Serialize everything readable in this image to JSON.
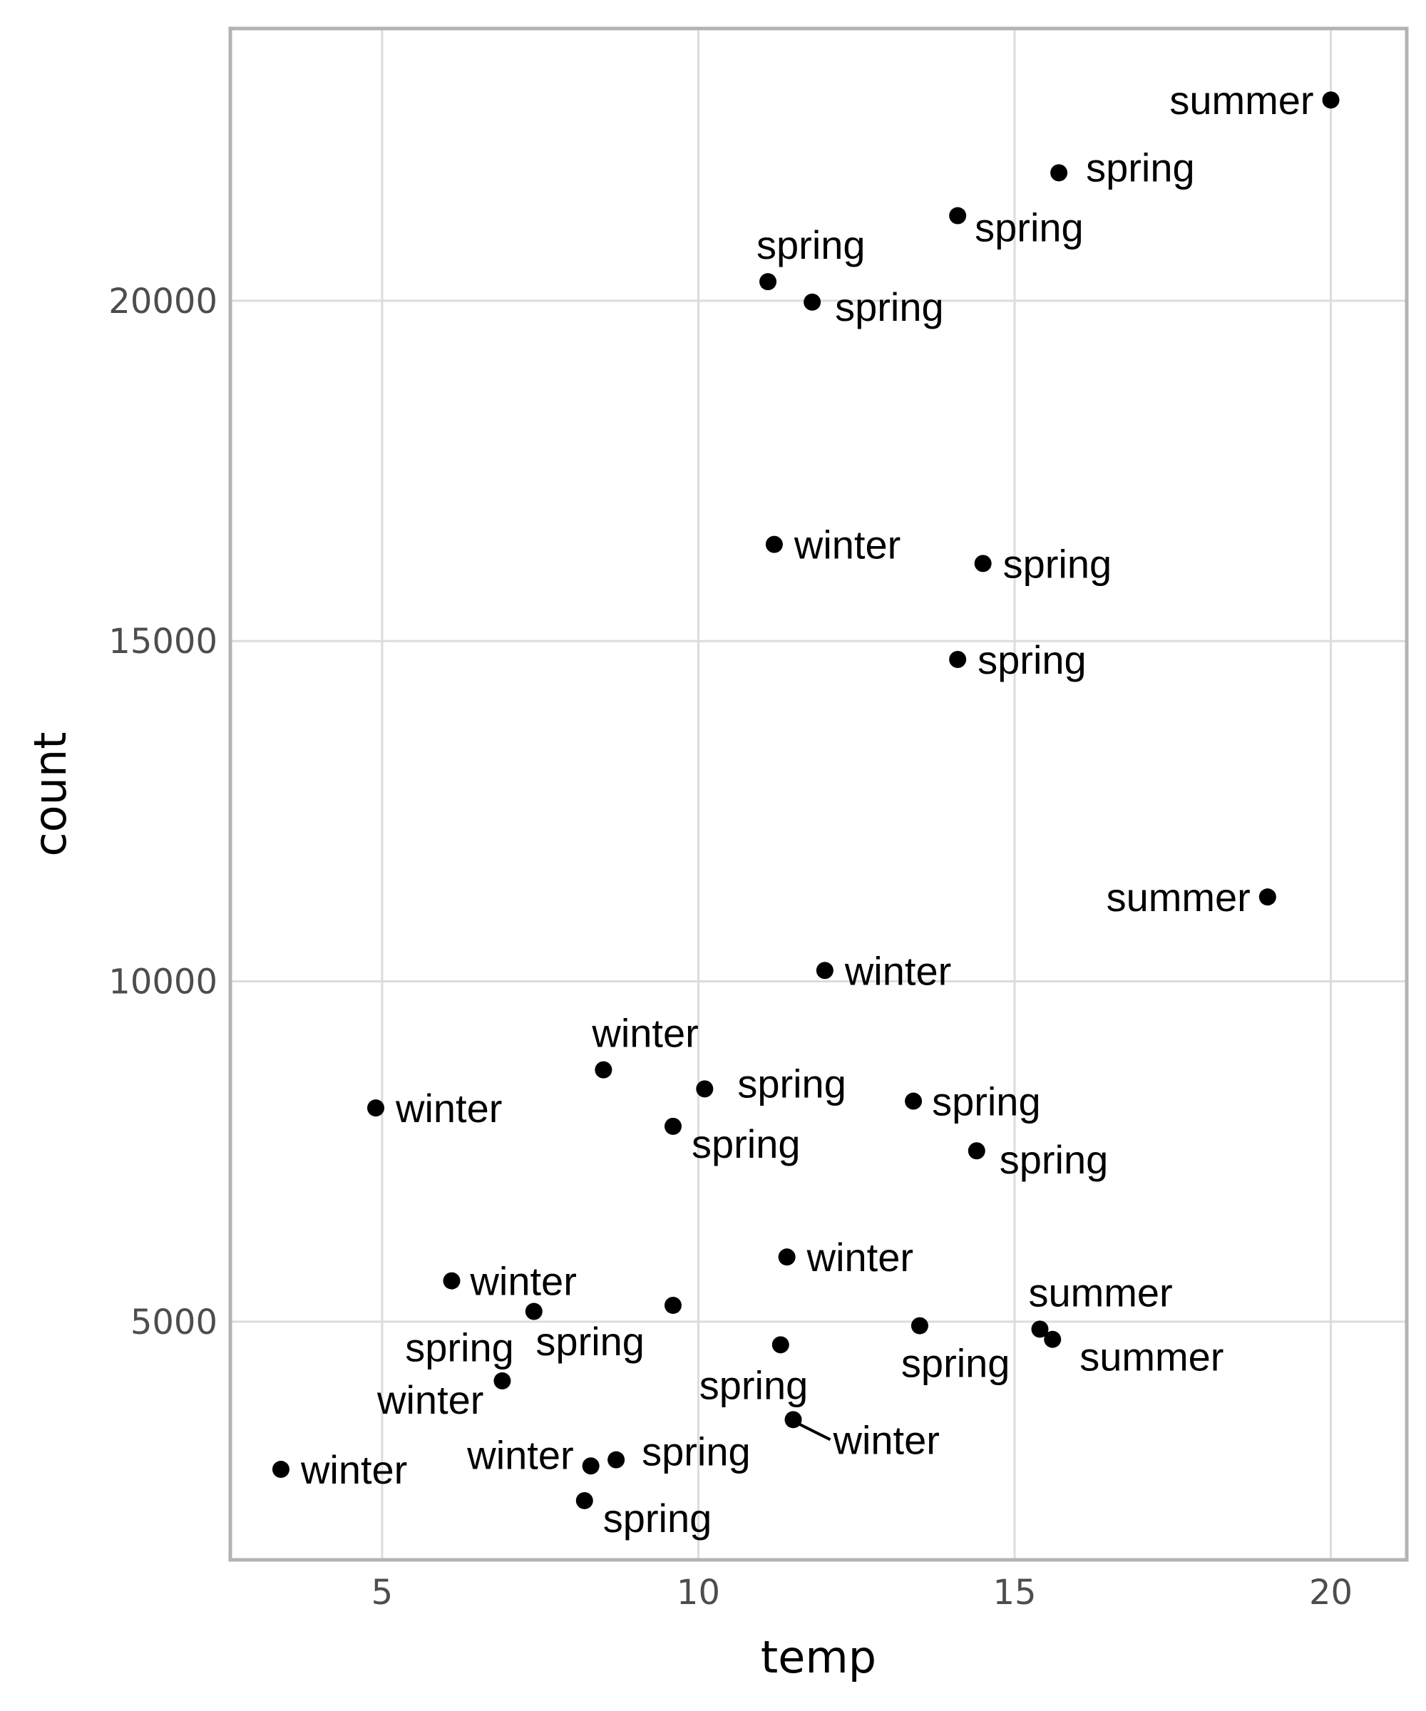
{
  "chart_data": {
    "type": "scatter",
    "title": "",
    "xlabel": "temp",
    "ylabel": "count",
    "xlim": [
      2.6,
      21.2
    ],
    "ylim": [
      1500,
      24000
    ],
    "xticks": [
      5,
      10,
      15,
      20
    ],
    "yticks": [
      5000,
      10000,
      15000,
      20000
    ],
    "xtick_labels": [
      "5",
      "10",
      "15",
      "20"
    ],
    "ytick_labels": [
      "5000",
      "10000",
      "15000",
      "20000"
    ],
    "grid": true,
    "legend": "none",
    "point_color": "#000000",
    "points": [
      {
        "x": 20.0,
        "y": 22950,
        "label": "summer"
      },
      {
        "x": 15.7,
        "y": 21880,
        "label": "spring"
      },
      {
        "x": 14.1,
        "y": 21250,
        "label": "spring"
      },
      {
        "x": 11.1,
        "y": 20280,
        "label": "spring"
      },
      {
        "x": 11.8,
        "y": 19980,
        "label": "spring"
      },
      {
        "x": 11.2,
        "y": 16420,
        "label": "winter"
      },
      {
        "x": 14.5,
        "y": 16140,
        "label": "spring"
      },
      {
        "x": 14.1,
        "y": 14730,
        "label": "spring"
      },
      {
        "x": 19.0,
        "y": 11240,
        "label": "summer"
      },
      {
        "x": 12.0,
        "y": 10160,
        "label": "winter"
      },
      {
        "x": 8.5,
        "y": 8700,
        "label": "winter"
      },
      {
        "x": 10.1,
        "y": 8420,
        "label": "spring"
      },
      {
        "x": 4.9,
        "y": 8140,
        "label": "winter"
      },
      {
        "x": 13.4,
        "y": 8240,
        "label": "spring"
      },
      {
        "x": 9.6,
        "y": 7870,
        "label": "spring"
      },
      {
        "x": 14.4,
        "y": 7510,
        "label": "spring"
      },
      {
        "x": 11.4,
        "y": 5950,
        "label": "winter"
      },
      {
        "x": 6.1,
        "y": 5600,
        "label": "winter"
      },
      {
        "x": 9.6,
        "y": 5240,
        "label": "spring"
      },
      {
        "x": 7.4,
        "y": 5150,
        "label": "spring"
      },
      {
        "x": 13.5,
        "y": 4940,
        "label": "spring"
      },
      {
        "x": 15.4,
        "y": 4890,
        "label": "summer"
      },
      {
        "x": 15.6,
        "y": 4740,
        "label": "summer"
      },
      {
        "x": 11.3,
        "y": 4660,
        "label": "spring"
      },
      {
        "x": 6.9,
        "y": 4130,
        "label": "winter"
      },
      {
        "x": 11.5,
        "y": 3560,
        "label": "winter"
      },
      {
        "x": 3.4,
        "y": 2830,
        "label": "winter"
      },
      {
        "x": 8.7,
        "y": 2970,
        "label": "spring"
      },
      {
        "x": 8.3,
        "y": 2880,
        "label": "winter"
      },
      {
        "x": 8.2,
        "y": 2370,
        "label": "spring"
      }
    ]
  }
}
